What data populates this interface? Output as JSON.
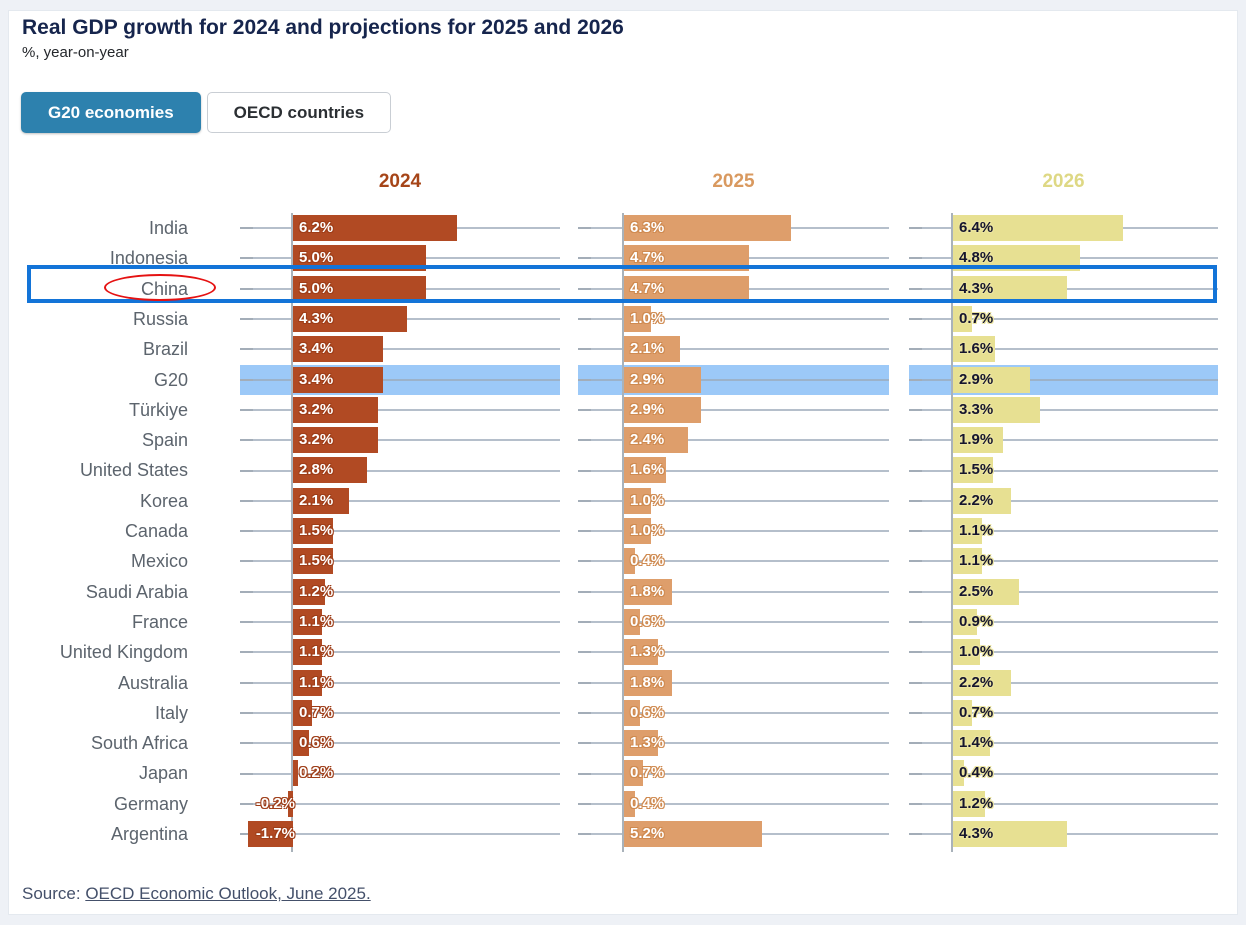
{
  "tabs": [
    {
      "label": "G20 economies",
      "active": true
    },
    {
      "label": "OECD countries",
      "active": false
    }
  ],
  "source": {
    "prefix": "Source: ",
    "link_text": "OECD Economic Outlook, June 2025."
  },
  "chart_data": {
    "type": "bar",
    "orientation": "horizontal",
    "title": "Real GDP growth for 2024 and projections for 2025 and 2026",
    "subtitle": "%, year-on-year",
    "columns": [
      "2024",
      "2025",
      "2026"
    ],
    "categories": [
      "India",
      "Indonesia",
      "China",
      "Russia",
      "Brazil",
      "G20",
      "Türkiye",
      "Spain",
      "United States",
      "Korea",
      "Canada",
      "Mexico",
      "Saudi Arabia",
      "France",
      "United Kingdom",
      "Australia",
      "Italy",
      "South Africa",
      "Japan",
      "Germany",
      "Argentina"
    ],
    "series": [
      {
        "name": "2024",
        "values": [
          6.2,
          5.0,
          5.0,
          4.3,
          3.4,
          3.4,
          3.2,
          3.2,
          2.8,
          2.1,
          1.5,
          1.5,
          1.2,
          1.1,
          1.1,
          1.1,
          0.7,
          0.6,
          0.2,
          -0.2,
          -1.7
        ]
      },
      {
        "name": "2025",
        "values": [
          6.3,
          4.7,
          4.7,
          1.0,
          2.1,
          2.9,
          2.9,
          2.4,
          1.6,
          1.0,
          1.0,
          0.4,
          1.8,
          0.6,
          1.3,
          1.8,
          0.6,
          1.3,
          0.7,
          0.4,
          5.2
        ]
      },
      {
        "name": "2026",
        "values": [
          6.4,
          4.8,
          4.3,
          0.7,
          1.6,
          2.9,
          3.3,
          1.9,
          1.5,
          2.2,
          1.1,
          1.1,
          2.5,
          0.9,
          1.0,
          2.2,
          0.7,
          1.4,
          0.4,
          1.2,
          4.3
        ]
      }
    ],
    "value_suffix": "%",
    "highlighted_band_row": "G20",
    "annotation": {
      "boxed_row": "China",
      "circled_label": "China"
    },
    "grid": true,
    "colors": {
      "bars": [
        "#b14a23",
        "#de9e6b",
        "#e7e092"
      ],
      "headers": [
        "#a64518",
        "#d9995f",
        "#ded884"
      ],
      "value_text": [
        "#ffffff",
        "#ffffff",
        "#15152e"
      ],
      "value_outline": [
        "#9e3d18",
        "#cf8a50",
        "#ece5a0"
      ],
      "g20_band": "#9cc9f8",
      "annotation_box": "#1374d8",
      "annotation_ellipse": "#e51212",
      "active_tab": "#2d81ae",
      "title_text": "#16254d"
    }
  }
}
